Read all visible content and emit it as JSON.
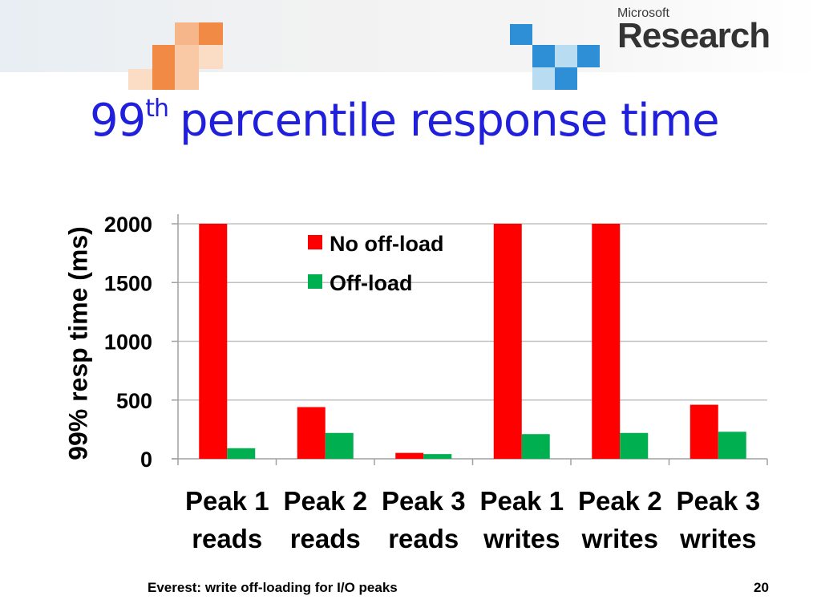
{
  "slide": {
    "title_main": "99",
    "title_sup": "th",
    "title_rest": "percentile response time",
    "logo_small": "Microsoft",
    "logo_big": "Research",
    "footer_text": "Everest: write off-loading for I/O peaks",
    "page_number": "20"
  },
  "colors": {
    "no_offload": "#ff0000",
    "offload": "#00b050",
    "title": "#1f1fdc",
    "grid": "#c0c0c0"
  },
  "chart_data": {
    "type": "bar",
    "title": "",
    "xlabel": "",
    "ylabel": "99% resp time (ms)",
    "ylim": [
      0,
      2000
    ],
    "yticks": [
      0,
      500,
      1000,
      1500,
      2000
    ],
    "categories": [
      [
        "Peak 1",
        "reads"
      ],
      [
        "Peak 2",
        "reads"
      ],
      [
        "Peak 3",
        "reads"
      ],
      [
        "Peak 1",
        "writes"
      ],
      [
        "Peak 2",
        "writes"
      ],
      [
        "Peak 3",
        "writes"
      ]
    ],
    "series": [
      {
        "name": "No off-load",
        "values": [
          2000,
          440,
          50,
          2000,
          2000,
          460
        ]
      },
      {
        "name": "Off-load",
        "values": [
          90,
          220,
          40,
          210,
          220,
          230
        ]
      }
    ],
    "grid": true,
    "legend": "top-center"
  }
}
